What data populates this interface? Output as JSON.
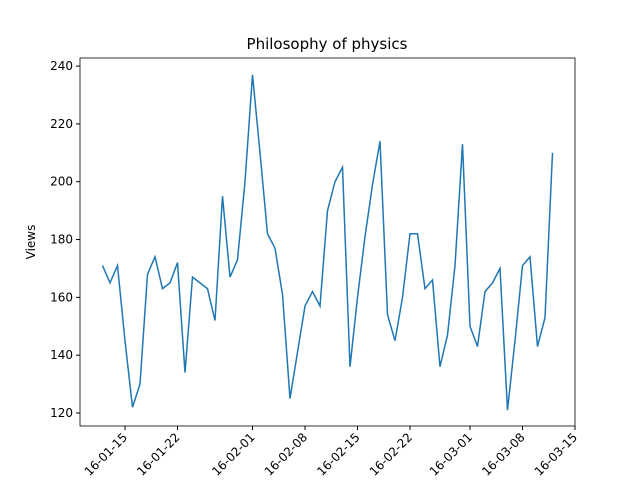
{
  "chart_data": {
    "type": "line",
    "title": "Philosophy of physics",
    "y_label": "Views",
    "x": [
      "01-12",
      "01-13",
      "01-14",
      "01-15",
      "01-16",
      "01-17",
      "01-18",
      "01-19",
      "01-20",
      "01-21",
      "01-22",
      "01-23",
      "01-24",
      "01-25",
      "01-26",
      "01-27",
      "01-28",
      "01-29",
      "01-30",
      "01-31",
      "02-01",
      "02-02",
      "02-03",
      "02-04",
      "02-05",
      "02-06",
      "02-07",
      "02-08",
      "02-09",
      "02-10",
      "02-11",
      "02-12",
      "02-13",
      "02-14",
      "02-15",
      "02-16",
      "02-17",
      "02-18",
      "02-19",
      "02-20",
      "02-21",
      "02-22",
      "02-23",
      "02-24",
      "02-25",
      "02-26",
      "02-27",
      "02-28",
      "02-29",
      "03-01",
      "03-02",
      "03-03",
      "03-04",
      "03-05",
      "03-06",
      "03-07",
      "03-08",
      "03-09",
      "03-10",
      "03-11",
      "03-12"
    ],
    "series": [
      {
        "name": "Views",
        "color": "#1f77b4",
        "values": [
          171,
          165,
          171,
          145,
          122,
          130,
          168,
          174,
          163,
          165,
          172,
          134,
          167,
          165,
          163,
          152,
          195,
          167,
          173,
          200,
          237,
          210,
          182,
          177,
          161,
          125,
          141,
          157,
          162,
          157,
          190,
          200,
          205,
          136,
          160,
          181,
          199,
          214,
          154,
          145,
          160,
          182,
          182,
          163,
          166,
          136,
          147,
          171,
          213,
          150,
          143,
          162,
          165,
          170,
          121,
          145,
          171,
          174,
          143,
          153,
          210
        ]
      }
    ],
    "xlim": [
      "01-09",
      "03-15"
    ],
    "xticks": [
      {
        "value": "01-15",
        "label": "16-01-15"
      },
      {
        "value": "01-22",
        "label": "16-01-22"
      },
      {
        "value": "02-01",
        "label": "16-02-01"
      },
      {
        "value": "02-08",
        "label": "16-02-08"
      },
      {
        "value": "02-15",
        "label": "16-02-15"
      },
      {
        "value": "02-22",
        "label": "16-02-22"
      },
      {
        "value": "03-01",
        "label": "16-03-01"
      },
      {
        "value": "03-08",
        "label": "16-03-08"
      },
      {
        "value": "03-15",
        "label": "16-03-15"
      }
    ],
    "ylim": [
      115.5,
      242.8
    ],
    "yticks": [
      120,
      140,
      160,
      180,
      200,
      220,
      240
    ],
    "grid": false
  }
}
